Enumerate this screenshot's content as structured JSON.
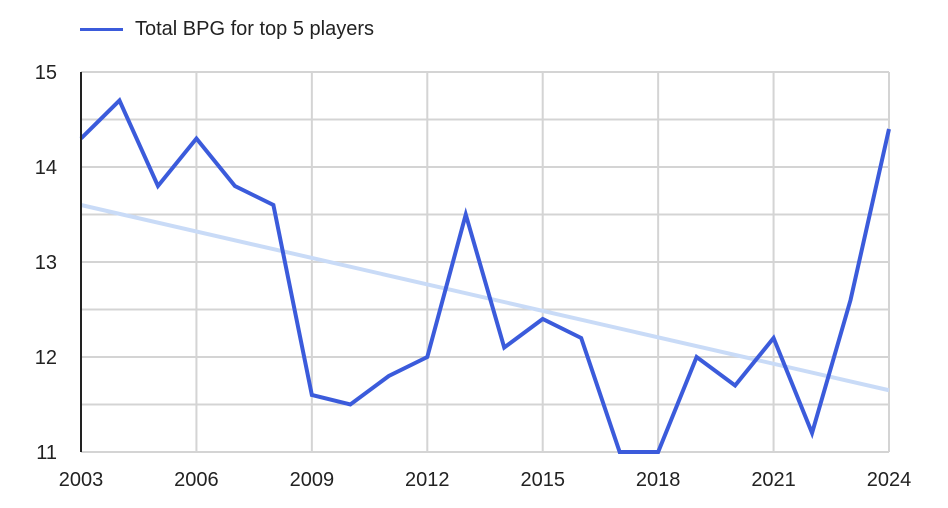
{
  "chart_data": {
    "type": "line",
    "title": "",
    "xlabel": "",
    "ylabel": "",
    "x": [
      2003,
      2004,
      2005,
      2006,
      2007,
      2008,
      2009,
      2010,
      2011,
      2012,
      2013,
      2014,
      2015,
      2016,
      2017,
      2018,
      2019,
      2020,
      2021,
      2022,
      2023,
      2024
    ],
    "series": [
      {
        "name": "Total BPG for top 5 players",
        "color": "#3b5bdb",
        "values": [
          14.3,
          14.7,
          13.8,
          14.3,
          13.8,
          13.6,
          11.6,
          11.5,
          11.8,
          12.0,
          13.5,
          12.1,
          12.4,
          12.2,
          11.0,
          11.0,
          12.0,
          11.7,
          12.2,
          11.2,
          12.6,
          14.4
        ]
      }
    ],
    "trendline": {
      "type": "linear",
      "color": "#c9dbf7",
      "start": {
        "x": 2003,
        "y": 13.6
      },
      "end": {
        "x": 2024,
        "y": 11.65
      },
      "in_legend": false
    },
    "x_ticks": [
      "2003",
      "2006",
      "2009",
      "2012",
      "2015",
      "2018",
      "2021",
      "2024"
    ],
    "y_ticks": [
      "11",
      "12",
      "13",
      "14",
      "15"
    ],
    "xlim": [
      2003,
      2024
    ],
    "ylim": [
      11,
      15
    ],
    "grid": true,
    "minor_y_grid_step": 0.5,
    "legend_position": "top-left"
  },
  "legend": {
    "label": "Total BPG for top 5 players"
  }
}
